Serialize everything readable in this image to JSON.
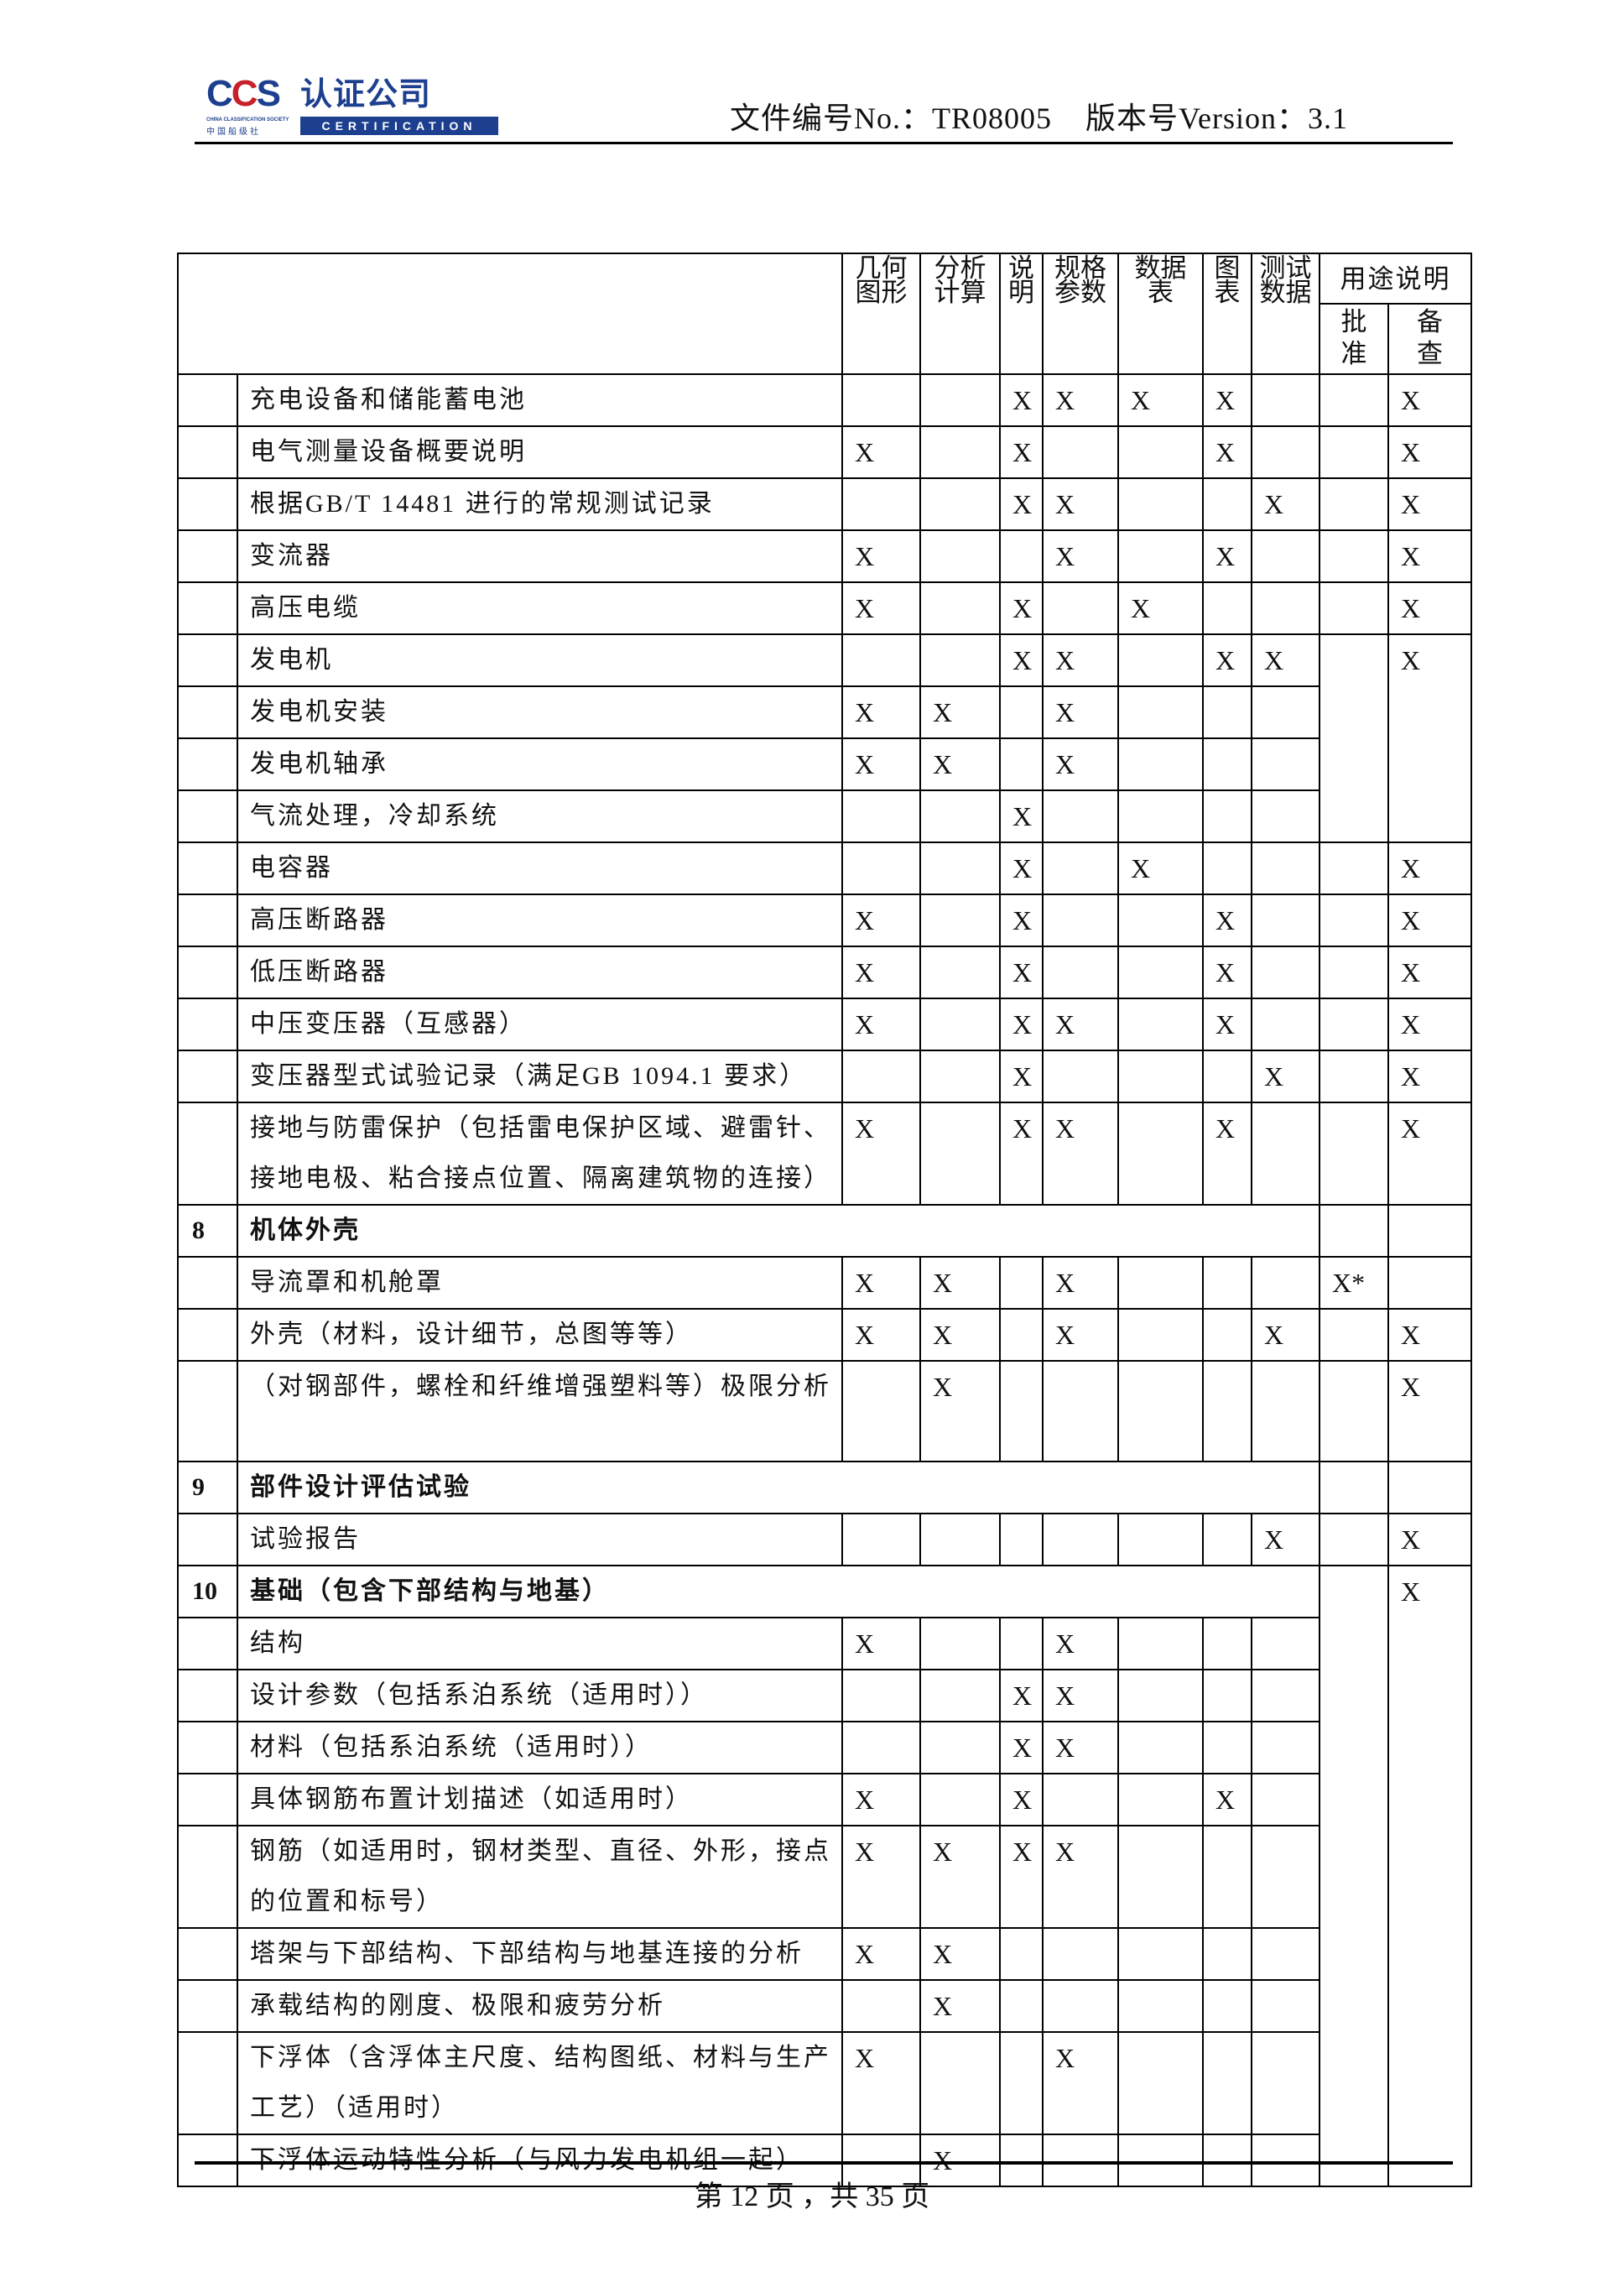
{
  "header": {
    "logo": {
      "ccs": "CCS",
      "name": "认证公司",
      "society": "CHINA CLASSIFICATION SOCIETY",
      "society_cn": "中国船级社",
      "certification": "CERTIFICATION"
    },
    "doc_info": "文件编号No.：TR08005    版本号Version：3.1"
  },
  "table": {
    "columns": [
      "几何\n图形",
      "分析\n计算",
      "说\n明",
      "规格\n参数",
      "数据\n表",
      "图\n表",
      "测试\n数据"
    ],
    "usage_header": "用途说明",
    "approve_header": "批\n准",
    "record_header": "备\n查",
    "rows": [
      {
        "desc": "充电设备和储能蓄电池",
        "marks": [
          "",
          "",
          "X",
          "X",
          "X",
          "X",
          ""
        ],
        "approve": "",
        "record": "X"
      },
      {
        "desc": "电气测量设备概要说明",
        "marks": [
          "X",
          "",
          "X",
          "",
          "",
          "X",
          ""
        ],
        "approve": "",
        "record": "X"
      },
      {
        "desc": "根据GB/T 14481 进行的常规测试记录",
        "marks": [
          "",
          "",
          "X",
          "X",
          "",
          "",
          "X"
        ],
        "approve": "",
        "record": "X"
      },
      {
        "desc": "变流器",
        "marks": [
          "X",
          "",
          "",
          "X",
          "",
          "X",
          ""
        ],
        "approve": "",
        "record": "X"
      },
      {
        "desc": "高压电缆",
        "marks": [
          "X",
          "",
          "X",
          "",
          "X",
          "",
          ""
        ],
        "approve": "",
        "record": "X"
      },
      {
        "desc": "发电机",
        "marks": [
          "",
          "",
          "X",
          "X",
          "",
          "X",
          "X"
        ],
        "approve": "",
        "record": "X"
      },
      {
        "desc": "发电机安装",
        "marks": [
          "X",
          "X",
          "",
          "X",
          "",
          "",
          ""
        ]
      },
      {
        "desc": "发电机轴承",
        "marks": [
          "X",
          "X",
          "",
          "X",
          "",
          "",
          ""
        ]
      },
      {
        "desc": "气流处理，冷却系统",
        "marks": [
          "",
          "",
          "X",
          "",
          "",
          "",
          ""
        ]
      },
      {
        "desc": "电容器",
        "marks": [
          "",
          "",
          "X",
          "",
          "X",
          "",
          ""
        ],
        "approve": "",
        "record": "X"
      },
      {
        "desc": "高压断路器",
        "marks": [
          "X",
          "",
          "X",
          "",
          "",
          "X",
          ""
        ],
        "approve": "",
        "record": "X"
      },
      {
        "desc": "低压断路器",
        "marks": [
          "X",
          "",
          "X",
          "",
          "",
          "X",
          ""
        ],
        "approve": "",
        "record": "X"
      },
      {
        "desc": "中压变压器（互感器）",
        "marks": [
          "X",
          "",
          "X",
          "X",
          "",
          "X",
          ""
        ],
        "approve": "",
        "record": "X"
      },
      {
        "desc": "变压器型式试验记录（满足GB 1094.1 要求）",
        "marks": [
          "",
          "",
          "X",
          "",
          "",
          "",
          "X"
        ],
        "approve": "",
        "record": "X"
      },
      {
        "desc": "接地与防雷保护（包括雷电保护区域、避雷针、接地电极、粘合接点位置、隔离建筑物的连接）",
        "marks": [
          "X",
          "",
          "X",
          "X",
          "",
          "X",
          ""
        ],
        "approve": "",
        "record": "X",
        "tall": true
      },
      {
        "section": "8",
        "desc": "机体外壳",
        "approve": "",
        "record": ""
      },
      {
        "desc": "导流罩和机舱罩",
        "marks": [
          "X",
          "X",
          "",
          "X",
          "",
          "",
          ""
        ],
        "approve": "X*",
        "record": ""
      },
      {
        "desc": "外壳（材料，设计细节，总图等等）",
        "marks": [
          "X",
          "X",
          "",
          "X",
          "",
          "",
          "X"
        ],
        "approve": "",
        "record": "X"
      },
      {
        "desc": "（对钢部件，螺栓和纤维增强塑料等）极限分析",
        "marks": [
          "",
          "X",
          "",
          "",
          "",
          "",
          ""
        ],
        "approve": "",
        "record": "X",
        "tall": true
      },
      {
        "section": "9",
        "desc": "部件设计评估试验",
        "approve": "",
        "record": ""
      },
      {
        "desc": "试验报告",
        "marks": [
          "",
          "",
          "",
          "",
          "",
          "",
          "X"
        ],
        "approve": "",
        "record": "X"
      },
      {
        "section": "10",
        "desc": "基础（包含下部结构与地基）",
        "approve": "",
        "record": "X"
      },
      {
        "desc": "结构",
        "marks": [
          "X",
          "",
          "",
          "X",
          "",
          "",
          ""
        ]
      },
      {
        "desc": "设计参数（包括系泊系统（适用时））",
        "marks": [
          "",
          "",
          "X",
          "X",
          "",
          "",
          ""
        ]
      },
      {
        "desc": "材料（包括系泊系统（适用时））",
        "marks": [
          "",
          "",
          "X",
          "X",
          "",
          "",
          ""
        ]
      },
      {
        "desc": "具体钢筋布置计划描述（如适用时）",
        "marks": [
          "X",
          "",
          "X",
          "",
          "",
          "X",
          ""
        ]
      },
      {
        "desc": "钢筋（如适用时，钢材类型、直径、外形，接点的位置和标号）",
        "marks": [
          "X",
          "X",
          "X",
          "X",
          "",
          "",
          ""
        ],
        "tall": true
      },
      {
        "desc": "塔架与下部结构、下部结构与地基连接的分析",
        "marks": [
          "X",
          "X",
          "",
          "",
          "",
          "",
          ""
        ]
      },
      {
        "desc": "承载结构的刚度、极限和疲劳分析",
        "marks": [
          "",
          "X",
          "",
          "",
          "",
          "",
          ""
        ]
      },
      {
        "desc": "下浮体（含浮体主尺度、结构图纸、材料与生产工艺）（适用时）",
        "marks": [
          "X",
          "",
          "",
          "X",
          "",
          "",
          ""
        ],
        "tall": true
      },
      {
        "desc": "下浮体运动特性分析（与风力发电机组一起）",
        "marks": [
          "",
          "X",
          "",
          "",
          "",
          "",
          ""
        ]
      }
    ]
  },
  "footer": {
    "page": "第 12 页 ，共 35 页"
  }
}
